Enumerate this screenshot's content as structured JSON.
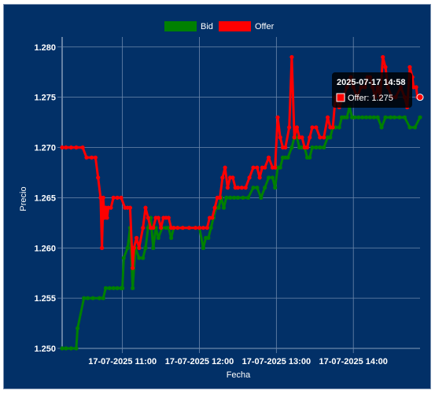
{
  "chart_data": {
    "type": "line",
    "xlabel": "Fecha",
    "ylabel": "Precio",
    "ylim": [
      1.25,
      1.281
    ],
    "y_ticks": [
      "1.250",
      "1.255",
      "1.260",
      "1.265",
      "1.270",
      "1.275",
      "1.280"
    ],
    "x_tick_labels": [
      {
        "time": "11:00",
        "label": "17-07-2025 11:00"
      },
      {
        "time": "12:00",
        "label": "17-07-2025 12:00"
      },
      {
        "time": "13:00",
        "label": "17-07-2025 13:00"
      },
      {
        "time": "14:00",
        "label": "17-07-2025 14:00"
      }
    ],
    "x_range": [
      "10:13",
      "14:52"
    ],
    "grid": true,
    "legend_position": "top",
    "series": [
      {
        "name": "Bid",
        "color": "#008000",
        "points": [
          [
            "10:13",
            1.25
          ],
          [
            "10:16",
            1.25
          ],
          [
            "10:20",
            1.25
          ],
          [
            "10:24",
            1.25
          ],
          [
            "10:25",
            1.252
          ],
          [
            "10:30",
            1.255
          ],
          [
            "10:33",
            1.255
          ],
          [
            "10:37",
            1.255
          ],
          [
            "10:42",
            1.255
          ],
          [
            "10:45",
            1.255
          ],
          [
            "10:47",
            1.256
          ],
          [
            "10:50",
            1.256
          ],
          [
            "10:53",
            1.256
          ],
          [
            "10:56",
            1.256
          ],
          [
            "10:59",
            1.256
          ],
          [
            "11:00",
            1.256
          ],
          [
            "11:01",
            1.259
          ],
          [
            "11:04",
            1.26
          ],
          [
            "11:06",
            1.262
          ],
          [
            "11:08",
            1.256
          ],
          [
            "11:10",
            1.26
          ],
          [
            "11:13",
            1.259
          ],
          [
            "11:16",
            1.259
          ],
          [
            "11:18",
            1.26
          ],
          [
            "11:20",
            1.262
          ],
          [
            "11:22",
            1.263
          ],
          [
            "11:24",
            1.26
          ],
          [
            "11:26",
            1.262
          ],
          [
            "11:28",
            1.261
          ],
          [
            "11:31",
            1.262
          ],
          [
            "11:34",
            1.262
          ],
          [
            "11:36",
            1.262
          ],
          [
            "11:38",
            1.261
          ],
          [
            "11:40",
            1.262
          ],
          [
            "11:43",
            1.262
          ],
          [
            "11:47",
            1.262
          ],
          [
            "11:52",
            1.262
          ],
          [
            "11:57",
            1.262
          ],
          [
            "12:00",
            1.262
          ],
          [
            "12:03",
            1.26
          ],
          [
            "12:05",
            1.261
          ],
          [
            "12:07",
            1.261
          ],
          [
            "12:09",
            1.262
          ],
          [
            "12:11",
            1.263
          ],
          [
            "12:13",
            1.264
          ],
          [
            "12:15",
            1.264
          ],
          [
            "12:17",
            1.265
          ],
          [
            "12:19",
            1.264
          ],
          [
            "12:21",
            1.265
          ],
          [
            "12:24",
            1.265
          ],
          [
            "12:27",
            1.265
          ],
          [
            "12:30",
            1.265
          ],
          [
            "12:34",
            1.265
          ],
          [
            "12:38",
            1.265
          ],
          [
            "12:42",
            1.266
          ],
          [
            "12:45",
            1.266
          ],
          [
            "12:48",
            1.265
          ],
          [
            "12:51",
            1.266
          ],
          [
            "12:54",
            1.267
          ],
          [
            "12:57",
            1.267
          ],
          [
            "12:59",
            1.266
          ],
          [
            "13:01",
            1.268
          ],
          [
            "13:03",
            1.268
          ],
          [
            "13:05",
            1.269
          ],
          [
            "13:07",
            1.269
          ],
          [
            "13:09",
            1.269
          ],
          [
            "13:12",
            1.27
          ],
          [
            "13:14",
            1.271
          ],
          [
            "13:16",
            1.271
          ],
          [
            "13:18",
            1.27
          ],
          [
            "13:20",
            1.27
          ],
          [
            "13:22",
            1.27
          ],
          [
            "13:24",
            1.269
          ],
          [
            "13:26",
            1.269
          ],
          [
            "13:28",
            1.27
          ],
          [
            "13:31",
            1.27
          ],
          [
            "13:34",
            1.27
          ],
          [
            "13:37",
            1.27
          ],
          [
            "13:40",
            1.271
          ],
          [
            "13:42",
            1.271
          ],
          [
            "13:44",
            1.272
          ],
          [
            "13:46",
            1.272
          ],
          [
            "13:49",
            1.272
          ],
          [
            "13:51",
            1.273
          ],
          [
            "13:53",
            1.273
          ],
          [
            "13:55",
            1.273
          ],
          [
            "13:57",
            1.274
          ],
          [
            "13:59",
            1.273
          ],
          [
            "14:01",
            1.273
          ],
          [
            "14:04",
            1.273
          ],
          [
            "14:07",
            1.273
          ],
          [
            "14:10",
            1.273
          ],
          [
            "14:13",
            1.273
          ],
          [
            "14:16",
            1.273
          ],
          [
            "14:19",
            1.273
          ],
          [
            "14:22",
            1.272
          ],
          [
            "14:25",
            1.273
          ],
          [
            "14:29",
            1.273
          ],
          [
            "14:32",
            1.273
          ],
          [
            "14:36",
            1.273
          ],
          [
            "14:40",
            1.273
          ],
          [
            "14:44",
            1.272
          ],
          [
            "14:48",
            1.272
          ],
          [
            "14:52",
            1.273
          ]
        ]
      },
      {
        "name": "Offer",
        "color": "#ff0000",
        "points": [
          [
            "10:13",
            1.27
          ],
          [
            "10:16",
            1.27
          ],
          [
            "10:20",
            1.27
          ],
          [
            "10:24",
            1.27
          ],
          [
            "10:29",
            1.27
          ],
          [
            "10:32",
            1.269
          ],
          [
            "10:36",
            1.269
          ],
          [
            "10:39",
            1.269
          ],
          [
            "10:41",
            1.267
          ],
          [
            "10:43",
            1.265
          ],
          [
            "10:44",
            1.26
          ],
          [
            "10:45",
            1.265
          ],
          [
            "10:46",
            1.263
          ],
          [
            "10:47",
            1.264
          ],
          [
            "10:48",
            1.263
          ],
          [
            "10:49",
            1.264
          ],
          [
            "10:51",
            1.264
          ],
          [
            "10:53",
            1.265
          ],
          [
            "10:56",
            1.265
          ],
          [
            "10:59",
            1.265
          ],
          [
            "11:02",
            1.264
          ],
          [
            "11:04",
            1.264
          ],
          [
            "11:06",
            1.264
          ],
          [
            "11:08",
            1.258
          ],
          [
            "11:09",
            1.26
          ],
          [
            "11:11",
            1.261
          ],
          [
            "11:13",
            1.26
          ],
          [
            "11:16",
            1.262
          ],
          [
            "11:18",
            1.264
          ],
          [
            "11:20",
            1.263
          ],
          [
            "11:22",
            1.262
          ],
          [
            "11:24",
            1.262
          ],
          [
            "11:26",
            1.263
          ],
          [
            "11:28",
            1.263
          ],
          [
            "11:30",
            1.262
          ],
          [
            "11:32",
            1.263
          ],
          [
            "11:34",
            1.263
          ],
          [
            "11:36",
            1.263
          ],
          [
            "11:38",
            1.262
          ],
          [
            "11:40",
            1.262
          ],
          [
            "11:43",
            1.262
          ],
          [
            "11:47",
            1.262
          ],
          [
            "11:52",
            1.262
          ],
          [
            "11:57",
            1.262
          ],
          [
            "12:00",
            1.262
          ],
          [
            "12:03",
            1.262
          ],
          [
            "12:06",
            1.262
          ],
          [
            "12:08",
            1.263
          ],
          [
            "12:10",
            1.263
          ],
          [
            "12:12",
            1.264
          ],
          [
            "12:14",
            1.265
          ],
          [
            "12:16",
            1.265
          ],
          [
            "12:18",
            1.267
          ],
          [
            "12:20",
            1.268
          ],
          [
            "12:22",
            1.266
          ],
          [
            "12:24",
            1.267
          ],
          [
            "12:26",
            1.267
          ],
          [
            "12:28",
            1.266
          ],
          [
            "12:30",
            1.266
          ],
          [
            "12:33",
            1.266
          ],
          [
            "12:36",
            1.266
          ],
          [
            "12:39",
            1.267
          ],
          [
            "12:42",
            1.268
          ],
          [
            "12:45",
            1.268
          ],
          [
            "12:47",
            1.267
          ],
          [
            "12:49",
            1.268
          ],
          [
            "12:51",
            1.268
          ],
          [
            "12:54",
            1.269
          ],
          [
            "12:57",
            1.268
          ],
          [
            "12:59",
            1.268
          ],
          [
            "13:01",
            1.273
          ],
          [
            "13:03",
            1.271
          ],
          [
            "13:05",
            1.27
          ],
          [
            "13:07",
            1.27
          ],
          [
            "13:10",
            1.272
          ],
          [
            "13:12",
            1.279
          ],
          [
            "13:14",
            1.271
          ],
          [
            "13:16",
            1.272
          ],
          [
            "13:18",
            1.271
          ],
          [
            "13:20",
            1.271
          ],
          [
            "13:22",
            1.27
          ],
          [
            "13:24",
            1.27
          ],
          [
            "13:26",
            1.271
          ],
          [
            "13:28",
            1.272
          ],
          [
            "13:31",
            1.272
          ],
          [
            "13:34",
            1.271
          ],
          [
            "13:37",
            1.271
          ],
          [
            "13:40",
            1.273
          ],
          [
            "13:42",
            1.272
          ],
          [
            "13:44",
            1.272
          ],
          [
            "13:46",
            1.275
          ],
          [
            "13:49",
            1.274
          ],
          [
            "13:52",
            1.275
          ],
          [
            "13:55",
            1.276
          ],
          [
            "13:58",
            1.277
          ],
          [
            "14:00",
            1.276
          ],
          [
            "14:03",
            1.275
          ],
          [
            "14:06",
            1.276
          ],
          [
            "14:09",
            1.276
          ],
          [
            "14:11",
            1.277
          ],
          [
            "14:13",
            1.277
          ],
          [
            "14:15",
            1.276
          ],
          [
            "14:17",
            1.275
          ],
          [
            "14:19",
            1.276
          ],
          [
            "14:21",
            1.275
          ],
          [
            "14:23",
            1.279
          ],
          [
            "14:25",
            1.278
          ],
          [
            "14:27",
            1.276
          ],
          [
            "14:30",
            1.275
          ],
          [
            "14:33",
            1.275
          ],
          [
            "14:37",
            1.276
          ],
          [
            "14:40",
            1.275
          ],
          [
            "14:42",
            1.274
          ],
          [
            "14:44",
            1.278
          ],
          [
            "14:46",
            1.277
          ],
          [
            "14:47",
            1.276
          ],
          [
            "14:49",
            1.276
          ],
          [
            "14:50",
            1.275
          ],
          [
            "14:52",
            1.275
          ]
        ]
      }
    ],
    "tooltip": {
      "title": "2025-07-17 14:58",
      "label": "Offer: 1.275",
      "series": "Offer",
      "time": "14:52",
      "value": 1.275
    }
  }
}
